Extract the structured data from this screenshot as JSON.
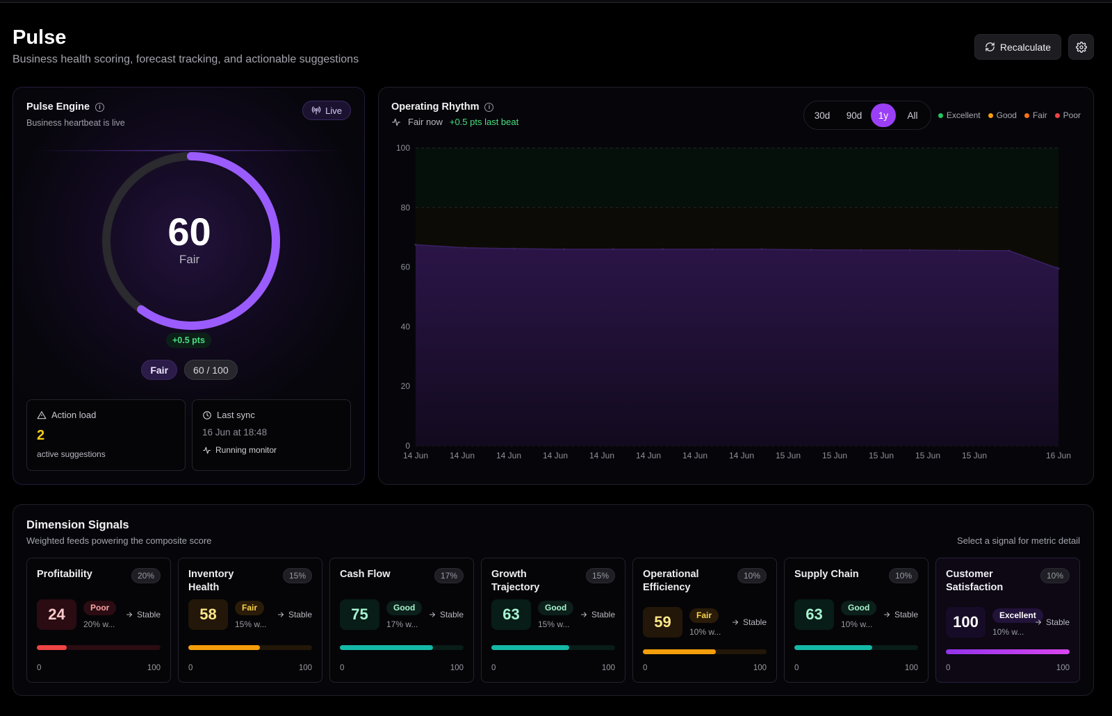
{
  "page": {
    "title": "Pulse",
    "subtitle": "Business health scoring, forecast tracking, and actionable suggestions",
    "recalculate_label": "Recalculate",
    "settings_icon": "gear-icon"
  },
  "engine": {
    "title": "Pulse Engine",
    "subtitle": "Business heartbeat is live",
    "live_label": "Live",
    "score": "60",
    "score_value": 60,
    "score_max": 100,
    "rating": "Fair",
    "delta": "+0.5 pts",
    "rating_pill": "Fair",
    "score_pill": "60 / 100",
    "action_load": {
      "title": "Action load",
      "count": "2",
      "caption": "active suggestions"
    },
    "last_sync": {
      "title": "Last sync",
      "date": "16 Jun at 18:48",
      "status": "Running monitor"
    },
    "accent": "#9b5cff"
  },
  "rhythm": {
    "title": "Operating Rhythm",
    "status_now": "Fair now",
    "last_beat": "+0.5 pts last beat",
    "ranges": [
      "30d",
      "90d",
      "1y",
      "All"
    ],
    "active_range": "1y",
    "legend": [
      {
        "label": "Excellent",
        "color": "#22c55e"
      },
      {
        "label": "Good",
        "color": "#f59e0b"
      },
      {
        "label": "Fair",
        "color": "#f97316"
      },
      {
        "label": "Poor",
        "color": "#ef4444"
      }
    ]
  },
  "chart_data": {
    "type": "area",
    "title": "Operating Rhythm",
    "x": [
      "14 Jun",
      "14 Jun",
      "14 Jun",
      "14 Jun",
      "14 Jun",
      "14 Jun",
      "14 Jun",
      "14 Jun",
      "15 Jun",
      "15 Jun",
      "15 Jun",
      "15 Jun",
      "15 Jun",
      "16 Jun"
    ],
    "x_tick_labels": [
      "14 Jun",
      "14 Jun",
      "14 Jun",
      "14 Jun",
      "14 Jun",
      "14 Jun",
      "14 Jun",
      "14 Jun",
      "15 Jun",
      "15 Jun",
      "15 Jun",
      "15 Jun",
      "15 Jun",
      "16 Jun"
    ],
    "series": [
      {
        "values": [
          67.5,
          66.5,
          66.2,
          66.0,
          66.0,
          66.0,
          66.0,
          66.0,
          65.8,
          65.7,
          65.7,
          65.6,
          65.5,
          59.5
        ]
      }
    ],
    "series_color": "#2a1645",
    "ylim": [
      0,
      100
    ],
    "y_ticks": [
      0,
      20,
      40,
      60,
      80,
      100
    ],
    "grid": true
  },
  "signals": {
    "title": "Dimension Signals",
    "subtitle": "Weighted feeds powering the composite score",
    "hint": "Select a signal for metric detail",
    "scale_min": "0",
    "scale_max": "100",
    "items": [
      {
        "name": "Profitability",
        "weight": "20%",
        "score": "24",
        "value": 24,
        "rating": "Poor",
        "weight_text": "20% w...",
        "trend": "Stable",
        "color": "#ef4444",
        "tint": "#2a0c12",
        "text_color": "#fecaca",
        "badge_bg": "#2a0c12",
        "badge_fg": "#fca5a5"
      },
      {
        "name": "Inventory Health",
        "weight": "15%",
        "score": "58",
        "value": 58,
        "rating": "Fair",
        "weight_text": "15% w...",
        "trend": "Stable",
        "color": "#f59e0b",
        "tint": "#221708",
        "text_color": "#fde68a",
        "badge_bg": "#2a1c08",
        "badge_fg": "#fcd34d"
      },
      {
        "name": "Cash Flow",
        "weight": "17%",
        "score": "75",
        "value": 75,
        "rating": "Good",
        "weight_text": "17% w...",
        "trend": "Stable",
        "color": "#14b8a6",
        "tint": "#081c18",
        "text_color": "#a7f3d0",
        "badge_bg": "#0c1f1a",
        "badge_fg": "#a7f3d0"
      },
      {
        "name": "Growth Trajectory",
        "weight": "15%",
        "score": "63",
        "value": 63,
        "rating": "Good",
        "weight_text": "15% w...",
        "trend": "Stable",
        "color": "#14b8a6",
        "tint": "#081c18",
        "text_color": "#a7f3d0",
        "badge_bg": "#0c1f1a",
        "badge_fg": "#a7f3d0"
      },
      {
        "name": "Operational Efficiency",
        "weight": "10%",
        "score": "59",
        "value": 59,
        "rating": "Fair",
        "weight_text": "10% w...",
        "trend": "Stable",
        "color": "#f59e0b",
        "tint": "#221708",
        "text_color": "#fde68a",
        "badge_bg": "#2a1c08",
        "badge_fg": "#fcd34d"
      },
      {
        "name": "Supply Chain",
        "weight": "10%",
        "score": "63",
        "value": 63,
        "rating": "Good",
        "weight_text": "10% w...",
        "trend": "Stable",
        "color": "#14b8a6",
        "tint": "#081c18",
        "text_color": "#a7f3d0",
        "badge_bg": "#0c1f1a",
        "badge_fg": "#a7f3d0"
      },
      {
        "name": "Customer Satisfaction",
        "weight": "10%",
        "score": "100",
        "value": 100,
        "rating": "Excellent",
        "weight_text": "10% w...",
        "trend": "Stable",
        "color": "#a855f7",
        "tint": "#170c28",
        "text_color": "#ffffff",
        "badge_bg": "#22133a",
        "badge_fg": "#ffffff"
      }
    ]
  }
}
